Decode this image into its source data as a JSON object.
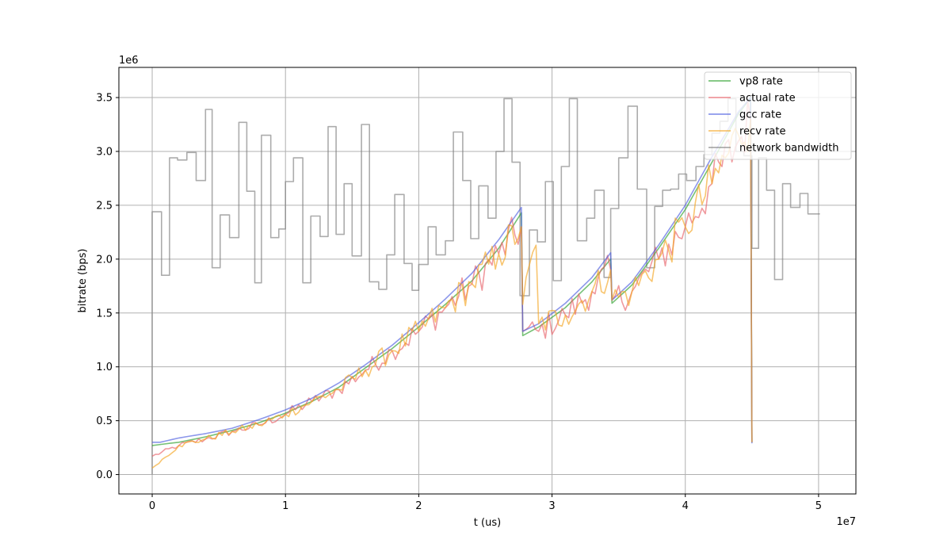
{
  "chart_data": {
    "type": "line",
    "xlabel": "t (us)",
    "ylabel": "bitrate (bps)",
    "x_offset_text": "1e7",
    "y_offset_text": "1e6",
    "xlim": [
      -2500000,
      52800000
    ],
    "ylim": [
      -180000,
      3780000
    ],
    "x_ticks": [
      0,
      10000000,
      20000000,
      30000000,
      40000000,
      50000000
    ],
    "x_tick_labels": [
      "0",
      "1",
      "2",
      "3",
      "4",
      "5"
    ],
    "y_ticks": [
      0,
      500000,
      1000000,
      1500000,
      2000000,
      2500000,
      3000000,
      3500000
    ],
    "y_tick_labels": [
      "0.0",
      "0.5",
      "1.0",
      "1.5",
      "2.0",
      "2.5",
      "3.0",
      "3.5"
    ],
    "grid": true,
    "legend_position": "top-right",
    "series": [
      {
        "name": "vp8 rate",
        "color": "#2ca02c",
        "style": "smooth",
        "x": [
          0,
          2000000,
          4000000,
          6000000,
          8000000,
          10000000,
          12000000,
          14000000,
          16000000,
          18000000,
          20000000,
          22000000,
          24000000,
          26000000,
          27700000,
          27800000,
          29000000,
          31000000,
          33000000,
          34400000,
          34500000,
          36000000,
          38000000,
          40000000,
          42000000,
          44000000,
          44900000,
          45000000
        ],
        "values": [
          270000,
          300000,
          350000,
          410000,
          480000,
          570000,
          680000,
          810000,
          990000,
          1170000,
          1370000,
          1580000,
          1800000,
          2100000,
          2430000,
          1290000,
          1370000,
          1550000,
          1790000,
          2000000,
          1590000,
          1760000,
          2100000,
          2460000,
          2900000,
          3350000,
          3500000,
          300000
        ]
      },
      {
        "name": "actual rate",
        "color": "#e8636a",
        "style": "noisy",
        "x": [
          0,
          2000000,
          4000000,
          6000000,
          8000000,
          10000000,
          12000000,
          14000000,
          16000000,
          18000000,
          20000000,
          22000000,
          24000000,
          26000000,
          27700000,
          27800000,
          29000000,
          31000000,
          33000000,
          34400000,
          34500000,
          36000000,
          38000000,
          40000000,
          42000000,
          44000000,
          44900000,
          45000000
        ],
        "values": [
          170000,
          270000,
          330000,
          400000,
          460000,
          560000,
          680000,
          790000,
          970000,
          1150000,
          1330000,
          1550000,
          1770000,
          2050000,
          2300000,
          1330000,
          1330000,
          1480000,
          1700000,
          1900000,
          1620000,
          1700000,
          2000000,
          2300000,
          2700000,
          3100000,
          3300000,
          300000
        ]
      },
      {
        "name": "gcc rate",
        "color": "#4e5fe0",
        "style": "smooth",
        "x": [
          0,
          600000,
          2000000,
          4000000,
          6000000,
          8000000,
          10000000,
          12000000,
          14000000,
          16000000,
          18000000,
          20000000,
          22000000,
          24000000,
          26000000,
          27700000,
          27800000,
          29000000,
          31000000,
          33000000,
          34400000,
          34500000,
          36000000,
          38000000,
          40000000,
          42000000,
          44000000,
          44900000,
          45000000
        ],
        "values": [
          300000,
          300000,
          340000,
          380000,
          430000,
          510000,
          600000,
          710000,
          850000,
          1020000,
          1200000,
          1410000,
          1630000,
          1870000,
          2180000,
          2480000,
          1330000,
          1400000,
          1590000,
          1830000,
          2060000,
          1620000,
          1790000,
          2130000,
          2500000,
          2950000,
          3370000,
          3500000,
          290000
        ]
      },
      {
        "name": "recv rate",
        "color": "#f5a623",
        "style": "noisy",
        "x": [
          0,
          2000000,
          4000000,
          6000000,
          8000000,
          10000000,
          12000000,
          14000000,
          16000000,
          18000000,
          20000000,
          22000000,
          24000000,
          26000000,
          27700000,
          27800000,
          28800000,
          29000000,
          31000000,
          33000000,
          34400000,
          34500000,
          36000000,
          38000000,
          40000000,
          42000000,
          44000000,
          44900000,
          45000000
        ],
        "values": [
          60000,
          270000,
          330000,
          400000,
          460000,
          560000,
          680000,
          790000,
          970000,
          1150000,
          1330000,
          1550000,
          1770000,
          2050000,
          2300000,
          1580000,
          2130000,
          1400000,
          1480000,
          1700000,
          1900000,
          1620000,
          1700000,
          2000000,
          2300000,
          2700000,
          3150000,
          3300000,
          300000
        ]
      },
      {
        "name": "network bandwidth",
        "color": "#808080",
        "style": "step",
        "x": [
          0,
          700000,
          1300000,
          1900000,
          2600000,
          3300000,
          4000000,
          4500000,
          5100000,
          5800000,
          6500000,
          7100000,
          7700000,
          8200000,
          8900000,
          9500000,
          10000000,
          10600000,
          11300000,
          11900000,
          12600000,
          13200000,
          13800000,
          14400000,
          15000000,
          15700000,
          16300000,
          17000000,
          17600000,
          18200000,
          18900000,
          19500000,
          20000000,
          20700000,
          21300000,
          22000000,
          22600000,
          23300000,
          23900000,
          24500000,
          25200000,
          25800000,
          26400000,
          27000000,
          27600000,
          28300000,
          28900000,
          29500000,
          30100000,
          30700000,
          31300000,
          31900000,
          32600000,
          33200000,
          33900000,
          34400000,
          35000000,
          35700000,
          36400000,
          37100000,
          37700000,
          38300000,
          38900000,
          39500000,
          40100000,
          40800000,
          41400000,
          42000000,
          42600000,
          43200000,
          43800000,
          44400000,
          45000000,
          45500000,
          46100000,
          46700000,
          47300000,
          47900000,
          48600000,
          49200000,
          49900000,
          50100000
        ],
        "values": [
          2440000,
          1850000,
          2940000,
          2920000,
          2990000,
          2730000,
          3390000,
          1920000,
          2410000,
          2200000,
          3270000,
          2630000,
          1780000,
          3150000,
          2200000,
          2280000,
          2720000,
          2940000,
          1780000,
          2400000,
          2210000,
          3230000,
          2230000,
          2700000,
          2030000,
          3250000,
          1790000,
          1720000,
          2040000,
          2600000,
          1960000,
          1710000,
          1950000,
          2300000,
          2040000,
          2170000,
          3180000,
          2730000,
          2190000,
          2680000,
          2380000,
          3000000,
          3490000,
          2900000,
          1660000,
          2270000,
          2160000,
          2720000,
          1800000,
          2860000,
          3490000,
          2170000,
          2380000,
          2640000,
          1830000,
          2470000,
          2940000,
          3420000,
          2650000,
          1920000,
          2490000,
          2640000,
          2650000,
          2790000,
          2730000,
          2860000,
          2970000,
          3170000,
          3280000,
          3490000,
          3000000,
          2960000,
          2100000,
          2940000,
          2640000,
          1810000,
          2700000,
          2480000,
          2610000,
          2420000,
          2420000,
          2420000
        ]
      }
    ]
  }
}
